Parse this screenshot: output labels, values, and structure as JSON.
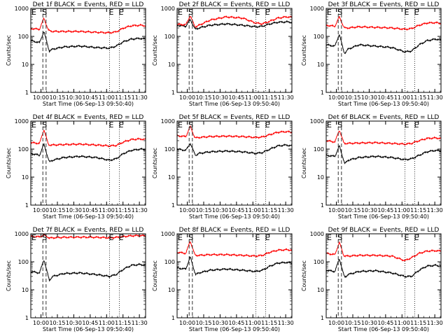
{
  "figure": {
    "xtick_labels": [
      "10:00",
      "10:15",
      "10:30",
      "10:45",
      "11:00",
      "11:15",
      "11:30"
    ],
    "ytick_labels": [
      "1",
      "10",
      "100",
      "1000"
    ],
    "xlabel": "Start Time (06-Sep-13 09:50:40)",
    "ylabel": "Counts/sec",
    "marker_E": "E",
    "marker_S": "S",
    "colors": {
      "events": "#000000",
      "lld": "#ff0000",
      "axes": "#000000",
      "background": "#ffffff"
    }
  },
  "chart_data": [
    {
      "type": "line",
      "title": "Det 1f  BLACK = Events, RED = LLD",
      "xlabel": "Start Time (06-Sep-13 09:50:40)",
      "ylabel": "Counts/sec",
      "ylog": true,
      "ylim": [
        1,
        1000
      ],
      "xlim": [
        "09:50:40",
        "11:35:40"
      ],
      "x_minutes": [
        0,
        8,
        12,
        16,
        17,
        20,
        30,
        45,
        60,
        72,
        78,
        85,
        92,
        100,
        105
      ],
      "series": [
        {
          "name": "Events",
          "color": "#000000",
          "values": [
            70,
            60,
            150,
            40,
            30,
            35,
            42,
            45,
            40,
            38,
            45,
            65,
            80,
            85,
            80
          ]
        },
        {
          "name": "LLD",
          "color": "#ff0000",
          "values": [
            190,
            180,
            450,
            170,
            160,
            150,
            150,
            150,
            140,
            135,
            145,
            200,
            240,
            250,
            240
          ]
        }
      ],
      "vlines": {
        "E": [
          0,
          72,
          81
        ],
        "S": [
          12,
          14
        ],
        "dashed": [
          11,
          14
        ]
      }
    },
    {
      "type": "line",
      "title": "Det 2f  BLACK = Events, RED = LLD",
      "xlabel": "Start Time (06-Sep-13 09:50:40)",
      "ylabel": "Counts/sec",
      "ylog": true,
      "ylim": [
        1,
        1000
      ],
      "xlim": [
        "09:50:40",
        "11:35:40"
      ],
      "x_minutes": [
        0,
        8,
        12,
        16,
        17,
        20,
        30,
        45,
        60,
        72,
        78,
        85,
        92,
        100,
        105
      ],
      "series": [
        {
          "name": "Events",
          "color": "#000000",
          "values": [
            250,
            230,
            400,
            200,
            180,
            200,
            250,
            280,
            250,
            220,
            230,
            280,
            320,
            330,
            320
          ]
        },
        {
          "name": "LLD",
          "color": "#ff0000",
          "values": [
            270,
            260,
            550,
            240,
            220,
            250,
            380,
            500,
            450,
            300,
            280,
            350,
            450,
            500,
            480
          ]
        }
      ],
      "vlines": {
        "E": [
          0,
          72,
          81
        ],
        "S": [
          12,
          14
        ],
        "dashed": [
          11,
          14
        ]
      }
    },
    {
      "type": "line",
      "title": "Det 3f  BLACK = Events, RED = LLD",
      "xlabel": "Start Time (06-Sep-13 09:50:40)",
      "ylabel": "Counts/sec",
      "ylog": true,
      "ylim": [
        1,
        1000
      ],
      "xlim": [
        "09:50:40",
        "11:35:40"
      ],
      "x_minutes": [
        0,
        8,
        12,
        16,
        17,
        20,
        30,
        45,
        60,
        72,
        78,
        85,
        92,
        100,
        105
      ],
      "series": [
        {
          "name": "Events",
          "color": "#000000",
          "values": [
            50,
            45,
            120,
            30,
            25,
            35,
            50,
            45,
            40,
            28,
            30,
            50,
            70,
            80,
            75
          ]
        },
        {
          "name": "LLD",
          "color": "#ff0000",
          "values": [
            250,
            230,
            500,
            220,
            200,
            200,
            220,
            210,
            200,
            180,
            190,
            250,
            300,
            310,
            290
          ]
        }
      ],
      "vlines": {
        "E": [
          0,
          72,
          81
        ],
        "S": [
          12,
          14
        ],
        "dashed": [
          11,
          14
        ]
      }
    },
    {
      "type": "line",
      "title": "Det 4f  BLACK = Events, RED = LLD",
      "xlabel": "Start Time (06-Sep-13 09:50:40)",
      "ylabel": "Counts/sec",
      "ylog": true,
      "ylim": [
        1,
        1000
      ],
      "xlim": [
        "09:50:40",
        "11:35:40"
      ],
      "x_minutes": [
        0,
        8,
        12,
        16,
        17,
        20,
        30,
        45,
        60,
        72,
        78,
        85,
        92,
        100,
        105
      ],
      "series": [
        {
          "name": "Events",
          "color": "#000000",
          "values": [
            70,
            60,
            150,
            45,
            35,
            40,
            50,
            55,
            50,
            40,
            45,
            70,
            90,
            100,
            95
          ]
        },
        {
          "name": "LLD",
          "color": "#ff0000",
          "values": [
            170,
            160,
            500,
            150,
            140,
            140,
            145,
            150,
            140,
            130,
            135,
            180,
            220,
            230,
            220
          ]
        }
      ],
      "vlines": {
        "E": [
          0,
          72,
          81
        ],
        "S": [
          12,
          14
        ],
        "dashed": [
          11,
          14
        ]
      }
    },
    {
      "type": "line",
      "title": "Det 5f  BLACK = Events, RED = LLD",
      "xlabel": "Start Time (06-Sep-13 09:50:40)",
      "ylabel": "Counts/sec",
      "ylog": true,
      "ylim": [
        1,
        1000
      ],
      "xlim": [
        "09:50:40",
        "11:35:40"
      ],
      "x_minutes": [
        0,
        8,
        12,
        16,
        17,
        20,
        30,
        45,
        60,
        72,
        78,
        85,
        92,
        100,
        105
      ],
      "series": [
        {
          "name": "Events",
          "color": "#000000",
          "values": [
            100,
            90,
            160,
            70,
            60,
            70,
            80,
            85,
            80,
            70,
            75,
            100,
            130,
            140,
            130
          ]
        },
        {
          "name": "LLD",
          "color": "#ff0000",
          "values": [
            300,
            280,
            650,
            270,
            250,
            260,
            280,
            290,
            280,
            260,
            270,
            330,
            400,
            420,
            400
          ]
        }
      ],
      "vlines": {
        "E": [
          0,
          72,
          81
        ],
        "S": [
          12,
          14
        ],
        "dashed": [
          11,
          14
        ]
      }
    },
    {
      "type": "line",
      "title": "Det 6f  BLACK = Events, RED = LLD",
      "xlabel": "Start Time (06-Sep-13 09:50:40)",
      "ylabel": "Counts/sec",
      "ylog": true,
      "ylim": [
        1,
        1000
      ],
      "xlim": [
        "09:50:40",
        "11:35:40"
      ],
      "x_minutes": [
        0,
        8,
        12,
        16,
        17,
        20,
        30,
        45,
        60,
        72,
        78,
        85,
        92,
        100,
        105
      ],
      "series": [
        {
          "name": "Events",
          "color": "#000000",
          "values": [
            60,
            55,
            130,
            40,
            30,
            40,
            50,
            55,
            50,
            42,
            45,
            60,
            80,
            90,
            85
          ]
        },
        {
          "name": "LLD",
          "color": "#ff0000",
          "values": [
            200,
            180,
            480,
            170,
            160,
            160,
            165,
            170,
            160,
            150,
            160,
            200,
            240,
            250,
            240
          ]
        }
      ],
      "vlines": {
        "E": [
          0,
          72,
          81
        ],
        "S": [
          12,
          14
        ],
        "dashed": [
          11,
          14
        ]
      }
    },
    {
      "type": "line",
      "title": "Det 7f  BLACK = Events, RED = LLD",
      "xlabel": "Start Time (06-Sep-13 09:50:40)",
      "ylabel": "Counts/sec",
      "ylog": true,
      "ylim": [
        1,
        1000
      ],
      "xlim": [
        "09:50:40",
        "11:35:40"
      ],
      "x_minutes": [
        0,
        8,
        12,
        16,
        17,
        20,
        30,
        45,
        60,
        72,
        78,
        85,
        92,
        100,
        105
      ],
      "series": [
        {
          "name": "Events",
          "color": "#000000",
          "values": [
            45,
            40,
            120,
            30,
            22,
            30,
            38,
            40,
            35,
            30,
            35,
            55,
            75,
            80,
            75
          ]
        },
        {
          "name": "LLD",
          "color": "#ff0000",
          "values": [
            800,
            780,
            900,
            750,
            700,
            720,
            750,
            760,
            750,
            720,
            740,
            800,
            850,
            870,
            850
          ]
        }
      ],
      "vlines": {
        "E": [
          0,
          72,
          81
        ],
        "S": [
          12,
          14
        ],
        "dashed": [
          11,
          14
        ]
      }
    },
    {
      "type": "line",
      "title": "Det 8f  BLACK = Events, RED = LLD",
      "xlabel": "Start Time (06-Sep-13 09:50:40)",
      "ylabel": "Counts/sec",
      "ylog": true,
      "ylim": [
        1,
        1000
      ],
      "xlim": [
        "09:50:40",
        "11:35:40"
      ],
      "x_minutes": [
        0,
        8,
        12,
        16,
        17,
        20,
        30,
        45,
        60,
        72,
        78,
        85,
        92,
        100,
        105
      ],
      "series": [
        {
          "name": "Events",
          "color": "#000000",
          "values": [
            60,
            55,
            150,
            45,
            35,
            40,
            50,
            55,
            50,
            45,
            50,
            70,
            90,
            95,
            90
          ]
        },
        {
          "name": "LLD",
          "color": "#ff0000",
          "values": [
            220,
            200,
            550,
            190,
            170,
            170,
            180,
            180,
            170,
            160,
            170,
            220,
            260,
            270,
            260
          ]
        }
      ],
      "vlines": {
        "E": [
          0,
          72,
          81
        ],
        "S": [
          12,
          14
        ],
        "dashed": [
          11,
          14
        ]
      }
    },
    {
      "type": "line",
      "title": "Det 9f  BLACK = Events, RED = LLD",
      "xlabel": "Start Time (06-Sep-13 09:50:40)",
      "ylabel": "Counts/sec",
      "ylog": true,
      "ylim": [
        1,
        1000
      ],
      "xlim": [
        "09:50:40",
        "11:35:40"
      ],
      "x_minutes": [
        0,
        8,
        12,
        16,
        17,
        20,
        30,
        45,
        60,
        72,
        78,
        85,
        92,
        100,
        105
      ],
      "series": [
        {
          "name": "Events",
          "color": "#000000",
          "values": [
            50,
            45,
            130,
            35,
            28,
            35,
            45,
            48,
            40,
            30,
            30,
            50,
            70,
            75,
            70
          ]
        },
        {
          "name": "LLD",
          "color": "#ff0000",
          "values": [
            200,
            180,
            500,
            170,
            160,
            160,
            170,
            170,
            160,
            110,
            140,
            200,
            240,
            250,
            240
          ]
        }
      ],
      "vlines": {
        "E": [
          0,
          72,
          81
        ],
        "S": [
          12,
          14
        ],
        "dashed": [
          11,
          14
        ]
      }
    }
  ]
}
